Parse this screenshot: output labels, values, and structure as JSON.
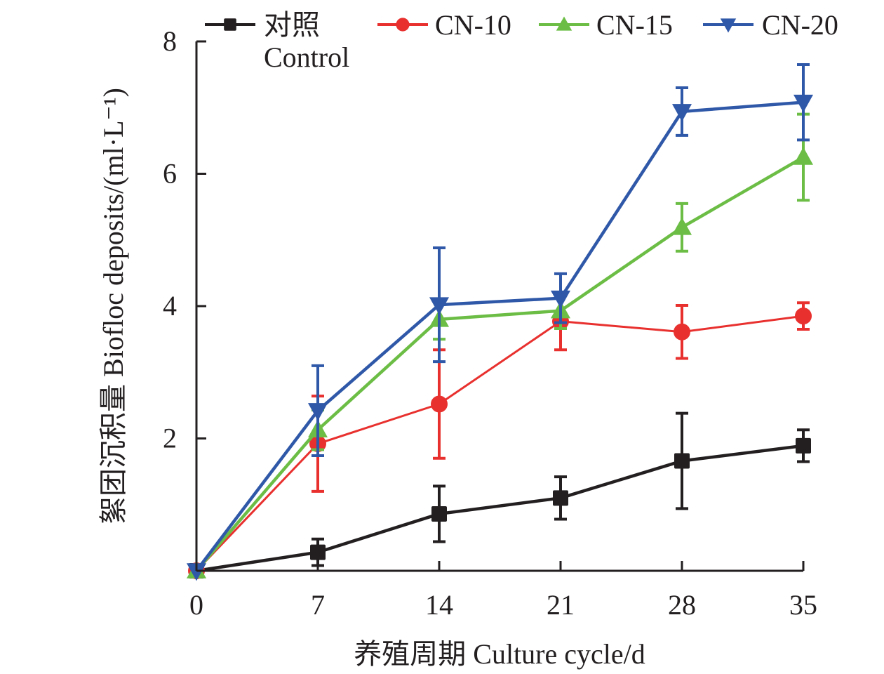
{
  "chart_data": {
    "type": "line",
    "title": "",
    "xlabel": "养殖周期 Culture cycle/d",
    "ylabel": "絮团沉积量 Biofloc deposits/(ml·L⁻¹)",
    "x": [
      0,
      7,
      14,
      21,
      28,
      35
    ],
    "x_tick_labels": [
      "0",
      "7",
      "14",
      "21",
      "28",
      "35"
    ],
    "xlim": [
      0,
      35
    ],
    "y_ticks": [
      2,
      4,
      6,
      8
    ],
    "y_tick_labels": [
      "2",
      "4",
      "6",
      "8"
    ],
    "ylim": [
      0,
      8
    ],
    "grid": false,
    "legend_position": "top",
    "series": [
      {
        "name": "对照 Control",
        "name_line1": "对照",
        "name_line2": "Control",
        "color": "#231f20",
        "marker": "square",
        "values": [
          0,
          0.28,
          0.86,
          1.1,
          1.66,
          1.89
        ],
        "error": [
          0,
          0.2,
          0.42,
          0.32,
          0.72,
          0.24
        ]
      },
      {
        "name": "CN-10",
        "color": "#e8312f",
        "marker": "circle",
        "values": [
          0,
          1.92,
          2.52,
          3.77,
          3.61,
          3.85
        ],
        "error": [
          0,
          0.72,
          0.82,
          0.43,
          0.4,
          0.2
        ]
      },
      {
        "name": "CN-15",
        "color": "#6bbd45",
        "marker": "triangle-up",
        "values": [
          0,
          2.13,
          3.8,
          3.93,
          5.19,
          6.25
        ],
        "error": [
          0,
          0.3,
          0.3,
          0.27,
          0.36,
          0.65
        ]
      },
      {
        "name": "CN-20",
        "color": "#2f58a8",
        "marker": "triangle-down",
        "values": [
          0,
          2.42,
          4.02,
          4.12,
          6.94,
          7.08
        ],
        "error": [
          0,
          0.68,
          0.86,
          0.37,
          0.36,
          0.57
        ]
      }
    ]
  }
}
